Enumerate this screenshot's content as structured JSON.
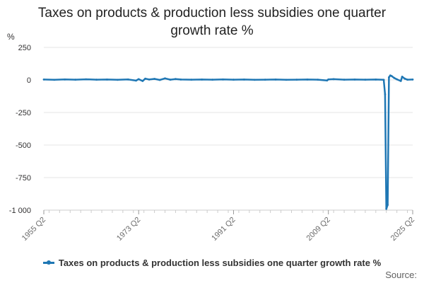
{
  "chart_data": {
    "type": "line",
    "title_lines": [
      "Taxes on products & production less subsidies one quarter",
      "growth rate %"
    ],
    "ylabel": "%",
    "ylim": [
      -1000,
      250
    ],
    "yticks": [
      250,
      0,
      -250,
      -500,
      -750,
      -1000
    ],
    "ytick_labels": [
      "250",
      "0",
      "-250",
      "-500",
      "-750",
      "-1 000"
    ],
    "x_start": "1955 Q2",
    "x_end": "2025 Q2",
    "xtick_labels": [
      "1955 Q2",
      "1973 Q2",
      "1991 Q2",
      "2009 Q2",
      "2025 Q2"
    ],
    "grid": true,
    "legend_position": "bottom",
    "color": "#1f77b4",
    "series": [
      {
        "name": "Taxes on products & production less subsidies one quarter growth rate %",
        "points": [
          [
            "1955 Q2",
            3
          ],
          [
            "1957 Q2",
            1
          ],
          [
            "1959 Q2",
            4
          ],
          [
            "1961 Q2",
            2
          ],
          [
            "1963 Q2",
            5
          ],
          [
            "1965 Q2",
            2
          ],
          [
            "1967 Q2",
            3
          ],
          [
            "1969 Q2",
            1
          ],
          [
            "1971 Q2",
            4
          ],
          [
            "1972 Q4",
            -5
          ],
          [
            "1973 Q2",
            6
          ],
          [
            "1974 Q1",
            -8
          ],
          [
            "1974 Q3",
            10
          ],
          [
            "1975 Q2",
            3
          ],
          [
            "1976 Q2",
            8
          ],
          [
            "1977 Q2",
            0
          ],
          [
            "1978 Q2",
            12
          ],
          [
            "1979 Q2",
            2
          ],
          [
            "1980 Q2",
            7
          ],
          [
            "1981 Q2",
            3
          ],
          [
            "1983 Q2",
            2
          ],
          [
            "1985 Q2",
            3
          ],
          [
            "1987 Q2",
            2
          ],
          [
            "1989 Q2",
            4
          ],
          [
            "1991 Q2",
            2
          ],
          [
            "1993 Q2",
            3
          ],
          [
            "1995 Q2",
            1
          ],
          [
            "1997 Q2",
            2
          ],
          [
            "1999 Q2",
            3
          ],
          [
            "2001 Q2",
            1
          ],
          [
            "2003 Q2",
            2
          ],
          [
            "2005 Q2",
            3
          ],
          [
            "2007 Q2",
            2
          ],
          [
            "2009 Q1",
            -4
          ],
          [
            "2009 Q2",
            4
          ],
          [
            "2010 Q2",
            6
          ],
          [
            "2012 Q2",
            2
          ],
          [
            "2014 Q2",
            3
          ],
          [
            "2016 Q2",
            2
          ],
          [
            "2018 Q2",
            3
          ],
          [
            "2019 Q4",
            1
          ],
          [
            "2020 Q1",
            -110
          ],
          [
            "2020 Q2",
            -990
          ],
          [
            "2020 Q3",
            -960
          ],
          [
            "2020 Q4",
            20
          ],
          [
            "2021 Q1",
            35
          ],
          [
            "2021 Q2",
            30
          ],
          [
            "2021 Q4",
            15
          ],
          [
            "2022 Q2",
            5
          ],
          [
            "2023 Q1",
            -8
          ],
          [
            "2023 Q2",
            25
          ],
          [
            "2023 Q4",
            10
          ],
          [
            "2024 Q2",
            2
          ],
          [
            "2025 Q2",
            3
          ]
        ]
      }
    ]
  },
  "source_label": "Source:"
}
